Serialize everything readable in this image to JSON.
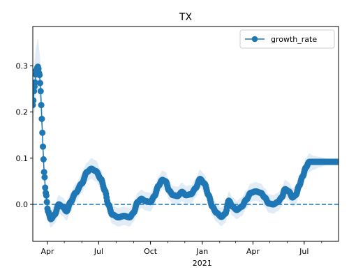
{
  "chart_data": {
    "type": "line",
    "title": "TX",
    "xlabel": "",
    "ylabel": "",
    "x_axis": {
      "type": "date",
      "range": [
        "2020-03-06",
        "2021-08-31"
      ],
      "tick_labels": [
        {
          "date": "2020-04-01",
          "label": "Apr"
        },
        {
          "date": "2020-07-01",
          "label": "Jul"
        },
        {
          "date": "2020-10-01",
          "label": "Oct"
        },
        {
          "date": "2021-01-01",
          "label": "Jan"
        },
        {
          "date": "2021-04-01",
          "label": "Apr"
        },
        {
          "date": "2021-07-01",
          "label": "Jul"
        }
      ],
      "year_label": {
        "date": "2021-01-01",
        "label": "2021"
      }
    },
    "y_axis": {
      "range": [
        -0.08,
        0.385
      ],
      "ticks": [
        0.0,
        0.1,
        0.2,
        0.3
      ],
      "tick_labels": [
        "0.0",
        "0.1",
        "0.2",
        "0.3"
      ]
    },
    "grid": false,
    "reference_line": {
      "y": 0.0,
      "style": "dashed"
    },
    "legend": {
      "position": "top-right",
      "marker": "circle"
    },
    "series": [
      {
        "name": "growth_rate",
        "color": "#1f77b4",
        "band_color": "#dce9f6",
        "marker": "circle",
        "points": [
          {
            "date": "2020-03-06",
            "y": 0.215,
            "lo": 0.17,
            "hi": 0.26
          },
          {
            "date": "2020-03-09",
            "y": 0.255,
            "lo": 0.2,
            "hi": 0.31
          },
          {
            "date": "2020-03-12",
            "y": 0.29,
            "lo": 0.24,
            "hi": 0.34
          },
          {
            "date": "2020-03-15",
            "y": 0.298,
            "lo": 0.25,
            "hi": 0.36
          },
          {
            "date": "2020-03-18",
            "y": 0.28,
            "lo": 0.23,
            "hi": 0.33
          },
          {
            "date": "2020-03-20",
            "y": 0.245,
            "lo": 0.2,
            "hi": 0.29
          },
          {
            "date": "2020-03-22",
            "y": 0.185,
            "lo": 0.15,
            "hi": 0.22
          },
          {
            "date": "2020-03-24",
            "y": 0.125,
            "lo": 0.1,
            "hi": 0.15
          },
          {
            "date": "2020-03-26",
            "y": 0.07,
            "lo": 0.05,
            "hi": 0.09
          },
          {
            "date": "2020-03-29",
            "y": 0.025,
            "lo": 0.005,
            "hi": 0.045
          },
          {
            "date": "2020-04-02",
            "y": -0.015,
            "lo": -0.035,
            "hi": 0.005
          },
          {
            "date": "2020-04-07",
            "y": -0.032,
            "lo": -0.05,
            "hi": -0.012
          },
          {
            "date": "2020-04-14",
            "y": -0.022,
            "lo": -0.042,
            "hi": -0.002
          },
          {
            "date": "2020-04-21",
            "y": 0.0,
            "lo": -0.02,
            "hi": 0.02
          },
          {
            "date": "2020-04-28",
            "y": -0.005,
            "lo": -0.025,
            "hi": 0.015
          },
          {
            "date": "2020-05-05",
            "y": -0.015,
            "lo": -0.035,
            "hi": 0.005
          },
          {
            "date": "2020-05-12",
            "y": 0.005,
            "lo": -0.015,
            "hi": 0.025
          },
          {
            "date": "2020-05-21",
            "y": 0.025,
            "lo": 0.005,
            "hi": 0.045
          },
          {
            "date": "2020-06-01",
            "y": 0.045,
            "lo": 0.025,
            "hi": 0.065
          },
          {
            "date": "2020-06-10",
            "y": 0.07,
            "lo": 0.05,
            "hi": 0.09
          },
          {
            "date": "2020-06-18",
            "y": 0.077,
            "lo": 0.055,
            "hi": 0.1
          },
          {
            "date": "2020-06-26",
            "y": 0.072,
            "lo": 0.05,
            "hi": 0.095
          },
          {
            "date": "2020-07-05",
            "y": 0.055,
            "lo": 0.035,
            "hi": 0.075
          },
          {
            "date": "2020-07-12",
            "y": 0.03,
            "lo": 0.01,
            "hi": 0.05
          },
          {
            "date": "2020-07-18",
            "y": 0.0,
            "lo": -0.02,
            "hi": 0.02
          },
          {
            "date": "2020-07-25",
            "y": -0.022,
            "lo": -0.042,
            "hi": -0.002
          },
          {
            "date": "2020-08-05",
            "y": -0.028,
            "lo": -0.048,
            "hi": -0.008
          },
          {
            "date": "2020-08-15",
            "y": -0.025,
            "lo": -0.045,
            "hi": -0.005
          },
          {
            "date": "2020-08-25",
            "y": -0.028,
            "lo": -0.048,
            "hi": -0.008
          },
          {
            "date": "2020-09-01",
            "y": -0.018,
            "lo": -0.038,
            "hi": 0.002
          },
          {
            "date": "2020-09-08",
            "y": 0.005,
            "lo": -0.015,
            "hi": 0.025
          },
          {
            "date": "2020-09-15",
            "y": 0.012,
            "lo": -0.008,
            "hi": 0.032
          },
          {
            "date": "2020-09-22",
            "y": 0.007,
            "lo": -0.013,
            "hi": 0.027
          },
          {
            "date": "2020-10-01",
            "y": 0.005,
            "lo": -0.015,
            "hi": 0.025
          },
          {
            "date": "2020-10-08",
            "y": 0.018,
            "lo": -0.002,
            "hi": 0.038
          },
          {
            "date": "2020-10-15",
            "y": 0.04,
            "lo": 0.02,
            "hi": 0.06
          },
          {
            "date": "2020-10-22",
            "y": 0.053,
            "lo": 0.033,
            "hi": 0.073
          },
          {
            "date": "2020-10-28",
            "y": 0.05,
            "lo": 0.03,
            "hi": 0.07
          },
          {
            "date": "2020-11-03",
            "y": 0.03,
            "lo": 0.01,
            "hi": 0.05
          },
          {
            "date": "2020-11-10",
            "y": 0.02,
            "lo": 0.0,
            "hi": 0.04
          },
          {
            "date": "2020-11-18",
            "y": 0.018,
            "lo": -0.002,
            "hi": 0.038
          },
          {
            "date": "2020-11-26",
            "y": 0.027,
            "lo": 0.007,
            "hi": 0.047
          },
          {
            "date": "2020-12-03",
            "y": 0.02,
            "lo": 0.0,
            "hi": 0.04
          },
          {
            "date": "2020-12-12",
            "y": 0.022,
            "lo": 0.002,
            "hi": 0.042
          },
          {
            "date": "2020-12-20",
            "y": 0.035,
            "lo": 0.015,
            "hi": 0.055
          },
          {
            "date": "2020-12-28",
            "y": 0.055,
            "lo": 0.035,
            "hi": 0.075
          },
          {
            "date": "2021-01-05",
            "y": 0.045,
            "lo": 0.025,
            "hi": 0.065
          },
          {
            "date": "2021-01-12",
            "y": 0.02,
            "lo": 0.0,
            "hi": 0.04
          },
          {
            "date": "2021-01-19",
            "y": -0.005,
            "lo": -0.025,
            "hi": 0.015
          },
          {
            "date": "2021-01-26",
            "y": -0.018,
            "lo": -0.038,
            "hi": 0.002
          },
          {
            "date": "2021-02-04",
            "y": -0.027,
            "lo": -0.047,
            "hi": -0.007
          },
          {
            "date": "2021-02-11",
            "y": -0.02,
            "lo": -0.04,
            "hi": 0.0
          },
          {
            "date": "2021-02-17",
            "y": 0.008,
            "lo": -0.012,
            "hi": 0.028
          },
          {
            "date": "2021-02-24",
            "y": -0.005,
            "lo": -0.025,
            "hi": 0.015
          },
          {
            "date": "2021-03-03",
            "y": -0.012,
            "lo": -0.032,
            "hi": 0.008
          },
          {
            "date": "2021-03-12",
            "y": -0.005,
            "lo": -0.025,
            "hi": 0.015
          },
          {
            "date": "2021-03-20",
            "y": 0.01,
            "lo": -0.01,
            "hi": 0.03
          },
          {
            "date": "2021-03-28",
            "y": 0.025,
            "lo": 0.005,
            "hi": 0.045
          },
          {
            "date": "2021-04-06",
            "y": 0.028,
            "lo": 0.008,
            "hi": 0.048
          },
          {
            "date": "2021-04-15",
            "y": 0.025,
            "lo": 0.005,
            "hi": 0.045
          },
          {
            "date": "2021-04-22",
            "y": 0.015,
            "lo": -0.005,
            "hi": 0.035
          },
          {
            "date": "2021-04-29",
            "y": 0.002,
            "lo": -0.018,
            "hi": 0.022
          },
          {
            "date": "2021-05-07",
            "y": 0.0,
            "lo": -0.02,
            "hi": 0.02
          },
          {
            "date": "2021-05-15",
            "y": 0.005,
            "lo": -0.015,
            "hi": 0.025
          },
          {
            "date": "2021-05-22",
            "y": 0.015,
            "lo": -0.005,
            "hi": 0.035
          },
          {
            "date": "2021-05-28",
            "y": 0.033,
            "lo": 0.013,
            "hi": 0.053
          },
          {
            "date": "2021-06-04",
            "y": 0.028,
            "lo": 0.008,
            "hi": 0.048
          },
          {
            "date": "2021-06-10",
            "y": 0.015,
            "lo": -0.005,
            "hi": 0.035
          },
          {
            "date": "2021-06-16",
            "y": 0.02,
            "lo": 0.0,
            "hi": 0.04
          },
          {
            "date": "2021-06-22",
            "y": 0.04,
            "lo": 0.02,
            "hi": 0.06
          },
          {
            "date": "2021-06-28",
            "y": 0.06,
            "lo": 0.04,
            "hi": 0.08
          },
          {
            "date": "2021-07-04",
            "y": 0.08,
            "lo": 0.06,
            "hi": 0.1
          },
          {
            "date": "2021-07-10",
            "y": 0.092,
            "lo": 0.07,
            "hi": 0.11
          },
          {
            "date": "2021-07-18",
            "y": 0.092,
            "lo": 0.075,
            "hi": 0.105
          },
          {
            "date": "2021-07-28",
            "y": 0.092,
            "lo": 0.08,
            "hi": 0.103
          },
          {
            "date": "2021-08-10",
            "y": 0.092,
            "lo": 0.085,
            "hi": 0.099
          },
          {
            "date": "2021-08-20",
            "y": 0.092,
            "lo": 0.088,
            "hi": 0.096
          },
          {
            "date": "2021-08-31",
            "y": 0.092,
            "lo": 0.09,
            "hi": 0.094
          }
        ]
      }
    ]
  }
}
